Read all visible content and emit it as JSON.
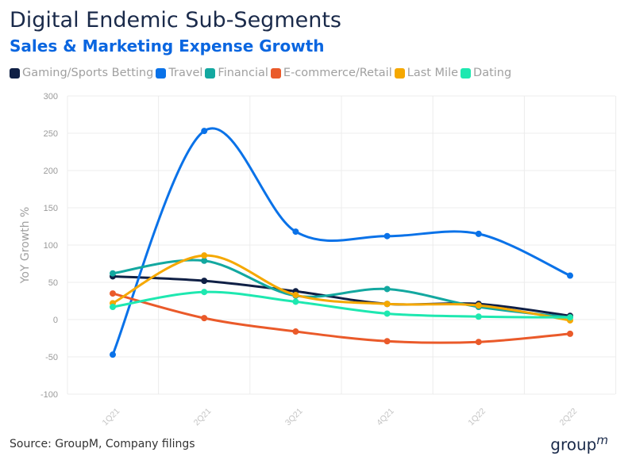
{
  "header": {
    "title": "Digital Endemic Sub-Segments",
    "subtitle": "Sales & Marketing Expense Growth"
  },
  "footer": {
    "source": "Source: GroupM, Company filings",
    "logo_text": "group",
    "logo_sup": "m"
  },
  "chart_data": {
    "type": "line",
    "categories": [
      "1Q21",
      "2Q21",
      "3Q21",
      "4Q21",
      "1Q22",
      "2Q22"
    ],
    "ylabel": "YoY Growth %",
    "ylim": [
      -100,
      300
    ],
    "yticks": [
      "300",
      "250",
      "200",
      "150",
      "100",
      "50",
      "0",
      "-50",
      "-100"
    ],
    "grid": true,
    "legend_position": "top-left",
    "series": [
      {
        "name": "Gaming/Sports Betting",
        "color": "#0f1f45",
        "values": [
          58,
          52,
          38,
          21,
          21,
          5
        ]
      },
      {
        "name": "Travel",
        "color": "#0a72e8",
        "values": [
          -47,
          253,
          118,
          112,
          115,
          59
        ]
      },
      {
        "name": "Financial",
        "color": "#13a8a0",
        "values": [
          62,
          79,
          32,
          41,
          17,
          3
        ]
      },
      {
        "name": "E-commerce/Retail",
        "color": "#ea5a2a",
        "values": [
          35,
          2,
          -16,
          -29,
          -30,
          -19
        ]
      },
      {
        "name": "Last Mile",
        "color": "#f5a800",
        "values": [
          22,
          86,
          33,
          21,
          19,
          -1
        ]
      },
      {
        "name": "Dating",
        "color": "#1ee8b0",
        "values": [
          17,
          37,
          24,
          8,
          4,
          3
        ]
      }
    ]
  }
}
